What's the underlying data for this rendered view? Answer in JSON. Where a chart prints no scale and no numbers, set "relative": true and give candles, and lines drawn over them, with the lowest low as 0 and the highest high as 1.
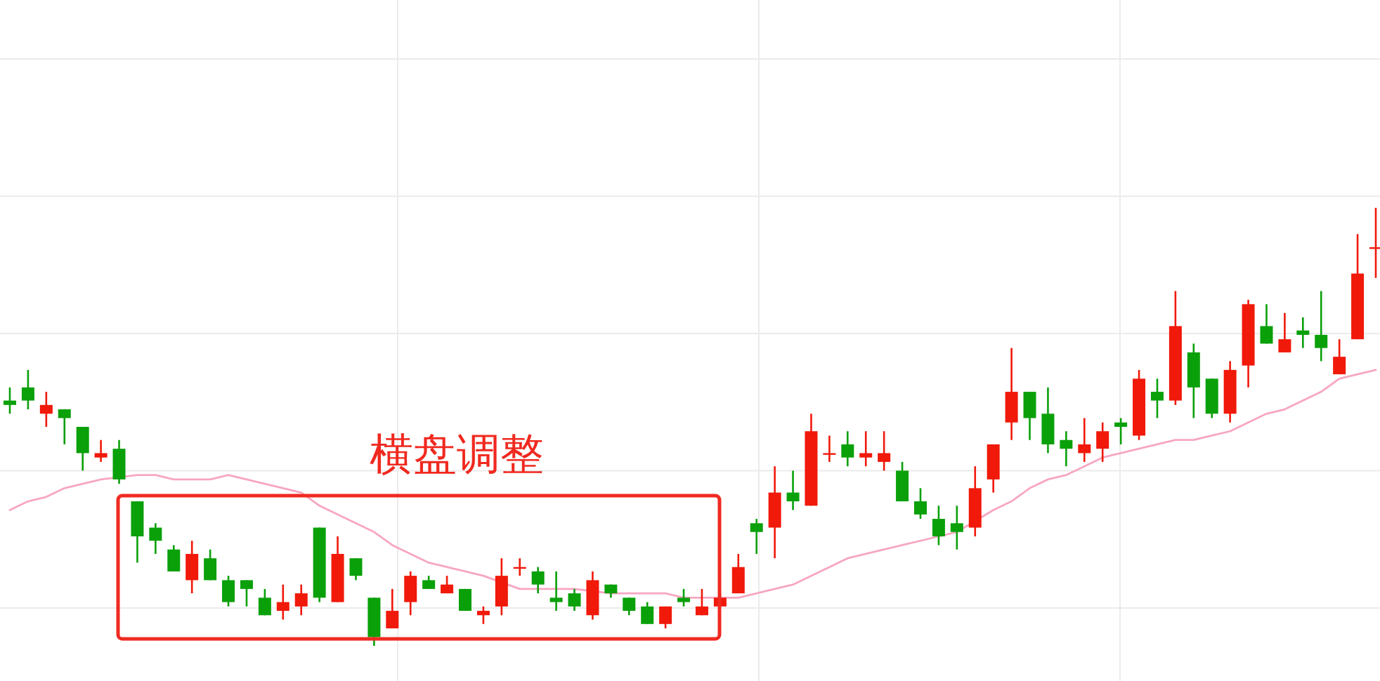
{
  "chart_data": {
    "type": "candlestick",
    "relative": true,
    "grid": true,
    "annotations": [
      "横盘调整"
    ],
    "categories": [
      null,
      null,
      null,
      null,
      null,
      null,
      null,
      null,
      null,
      null,
      null,
      null,
      null,
      null,
      null,
      null,
      null,
      null,
      null,
      null,
      null,
      null,
      null,
      null,
      null,
      null,
      null,
      null,
      null,
      null,
      null,
      null,
      null,
      null,
      null,
      null,
      null,
      null,
      null,
      null,
      null,
      null,
      null,
      null,
      null,
      null,
      null,
      null,
      null,
      null,
      null,
      null,
      null,
      null,
      null,
      null,
      null,
      null,
      null,
      null,
      null,
      null,
      null,
      null,
      null,
      null,
      null,
      null,
      null,
      null,
      null,
      null,
      null,
      null,
      null,
      null
    ],
    "ohlc": [
      [
        0.56,
        0.59,
        0.53,
        0.55
      ],
      [
        0.59,
        0.63,
        0.54,
        0.56
      ],
      [
        0.53,
        0.58,
        0.5,
        0.55
      ],
      [
        0.54,
        0.54,
        0.46,
        0.52
      ],
      [
        0.5,
        0.5,
        0.4,
        0.44
      ],
      [
        0.43,
        0.47,
        0.42,
        0.44
      ],
      [
        0.45,
        0.47,
        0.37,
        0.38
      ],
      [
        0.33,
        0.33,
        0.19,
        0.25
      ],
      [
        0.27,
        0.28,
        0.21,
        0.24
      ],
      [
        0.22,
        0.23,
        0.17,
        0.17
      ],
      [
        0.15,
        0.24,
        0.12,
        0.21
      ],
      [
        0.2,
        0.22,
        0.15,
        0.15
      ],
      [
        0.15,
        0.16,
        0.09,
        0.1
      ],
      [
        0.15,
        0.15,
        0.09,
        0.13
      ],
      [
        0.11,
        0.13,
        0.07,
        0.07
      ],
      [
        0.08,
        0.14,
        0.06,
        0.1
      ],
      [
        0.09,
        0.14,
        0.07,
        0.12
      ],
      [
        0.27,
        0.27,
        0.1,
        0.11
      ],
      [
        0.1,
        0.25,
        0.1,
        0.21
      ],
      [
        0.2,
        0.2,
        0.15,
        0.16
      ],
      [
        0.11,
        0.11,
        0.0,
        0.02
      ],
      [
        0.04,
        0.13,
        0.04,
        0.08
      ],
      [
        0.1,
        0.17,
        0.07,
        0.16
      ],
      [
        0.15,
        0.16,
        0.13,
        0.13
      ],
      [
        0.12,
        0.16,
        0.12,
        0.14
      ],
      [
        0.13,
        0.13,
        0.08,
        0.08
      ],
      [
        0.07,
        0.09,
        0.05,
        0.08
      ],
      [
        0.09,
        0.2,
        0.07,
        0.16
      ],
      [
        0.18,
        0.2,
        0.16,
        0.18
      ],
      [
        0.17,
        0.18,
        0.12,
        0.14
      ],
      [
        0.11,
        0.17,
        0.08,
        0.1
      ],
      [
        0.12,
        0.13,
        0.08,
        0.09
      ],
      [
        0.07,
        0.17,
        0.06,
        0.15
      ],
      [
        0.14,
        0.14,
        0.11,
        0.12
      ],
      [
        0.11,
        0.11,
        0.07,
        0.08
      ],
      [
        0.09,
        0.1,
        0.05,
        0.05
      ],
      [
        0.05,
        0.09,
        0.04,
        0.09
      ],
      [
        0.11,
        0.13,
        0.09,
        0.1
      ],
      [
        0.07,
        0.13,
        0.07,
        0.09
      ],
      [
        0.09,
        0.12,
        0.09,
        0.11
      ],
      [
        0.12,
        0.21,
        0.12,
        0.18
      ],
      [
        0.28,
        0.29,
        0.21,
        0.26
      ],
      [
        0.27,
        0.41,
        0.2,
        0.35
      ],
      [
        0.35,
        0.4,
        0.31,
        0.33
      ],
      [
        0.32,
        0.53,
        0.32,
        0.49
      ],
      [
        0.44,
        0.48,
        0.42,
        0.44
      ],
      [
        0.46,
        0.49,
        0.41,
        0.43
      ],
      [
        0.43,
        0.49,
        0.41,
        0.44
      ],
      [
        0.42,
        0.49,
        0.4,
        0.44
      ],
      [
        0.4,
        0.42,
        0.33,
        0.33
      ],
      [
        0.33,
        0.36,
        0.29,
        0.3
      ],
      [
        0.29,
        0.32,
        0.23,
        0.25
      ],
      [
        0.28,
        0.32,
        0.22,
        0.26
      ],
      [
        0.27,
        0.41,
        0.25,
        0.36
      ],
      [
        0.38,
        0.46,
        0.35,
        0.46
      ],
      [
        0.51,
        0.68,
        0.47,
        0.58
      ],
      [
        0.58,
        0.58,
        0.47,
        0.52
      ],
      [
        0.53,
        0.59,
        0.44,
        0.46
      ],
      [
        0.47,
        0.49,
        0.41,
        0.45
      ],
      [
        0.44,
        0.52,
        0.42,
        0.46
      ],
      [
        0.45,
        0.51,
        0.42,
        0.49
      ],
      [
        0.51,
        0.52,
        0.46,
        0.5
      ],
      [
        0.48,
        0.63,
        0.47,
        0.61
      ],
      [
        0.58,
        0.61,
        0.52,
        0.56
      ],
      [
        0.56,
        0.81,
        0.55,
        0.73
      ],
      [
        0.67,
        0.69,
        0.52,
        0.59
      ],
      [
        0.61,
        0.61,
        0.52,
        0.53
      ],
      [
        0.53,
        0.65,
        0.51,
        0.63
      ],
      [
        0.64,
        0.79,
        0.59,
        0.78
      ],
      [
        0.73,
        0.78,
        0.69,
        0.69
      ],
      [
        0.67,
        0.76,
        0.67,
        0.7
      ],
      [
        0.72,
        0.75,
        0.68,
        0.71
      ],
      [
        0.71,
        0.81,
        0.65,
        0.68
      ],
      [
        0.62,
        0.7,
        0.62,
        0.66
      ],
      [
        0.7,
        0.94,
        0.7,
        0.85
      ],
      [
        0.91,
        1.0,
        0.84,
        0.91
      ]
    ],
    "colors": [
      "#0aa00a",
      "#0aa00a",
      "#f0190a",
      "#0aa00a",
      "#0aa00a",
      "#f0190a",
      "#0aa00a",
      "#0aa00a",
      "#0aa00a",
      "#0aa00a",
      "#f0190a",
      "#0aa00a",
      "#0aa00a",
      "#0aa00a",
      "#0aa00a",
      "#f0190a",
      "#f0190a",
      "#0aa00a",
      "#f0190a",
      "#0aa00a",
      "#0aa00a",
      "#f0190a",
      "#f0190a",
      "#0aa00a",
      "#f0190a",
      "#0aa00a",
      "#f0190a",
      "#f0190a",
      "#f0190a",
      "#0aa00a",
      "#0aa00a",
      "#0aa00a",
      "#f0190a",
      "#0aa00a",
      "#0aa00a",
      "#0aa00a",
      "#f0190a",
      "#0aa00a",
      "#f0190a",
      "#f0190a",
      "#f0190a",
      "#0aa00a",
      "#f0190a",
      "#0aa00a",
      "#f0190a",
      "#f0190a",
      "#0aa00a",
      "#f0190a",
      "#f0190a",
      "#0aa00a",
      "#0aa00a",
      "#0aa00a",
      "#0aa00a",
      "#f0190a",
      "#f0190a",
      "#f0190a",
      "#0aa00a",
      "#0aa00a",
      "#0aa00a",
      "#f0190a",
      "#f0190a",
      "#0aa00a",
      "#f0190a",
      "#0aa00a",
      "#f0190a",
      "#0aa00a",
      "#0aa00a",
      "#f0190a",
      "#f0190a",
      "#0aa00a",
      "#f0190a",
      "#0aa00a",
      "#0aa00a",
      "#f0190a",
      "#f0190a",
      "#f0190a"
    ],
    "series": [
      {
        "type": "line",
        "color": "#f7a6c2",
        "values": [
          0.31,
          0.33,
          0.34,
          0.36,
          0.37,
          0.38,
          null,
          0.39,
          0.39,
          0.38,
          0.38,
          0.38,
          0.39,
          0.38,
          0.37,
          0.36,
          0.35,
          0.32,
          0.3,
          0.28,
          0.26,
          0.23,
          0.21,
          0.19,
          0.18,
          0.17,
          0.16,
          null,
          0.13,
          0.13,
          0.13,
          0.13,
          null,
          0.12,
          0.12,
          0.12,
          0.12,
          0.11,
          0.11,
          null,
          0.11,
          0.12,
          0.13,
          0.14,
          0.16,
          0.18,
          0.2,
          0.21,
          0.22,
          0.23,
          0.24,
          0.25,
          0.26,
          null,
          0.31,
          0.33,
          0.36,
          0.38,
          0.39,
          0.41,
          0.43,
          0.44,
          0.45,
          0.46,
          0.47,
          0.47,
          0.48,
          0.49,
          0.51,
          0.53,
          0.54,
          0.56,
          0.58,
          0.61,
          0.62,
          0.63
        ]
      }
    ]
  }
}
